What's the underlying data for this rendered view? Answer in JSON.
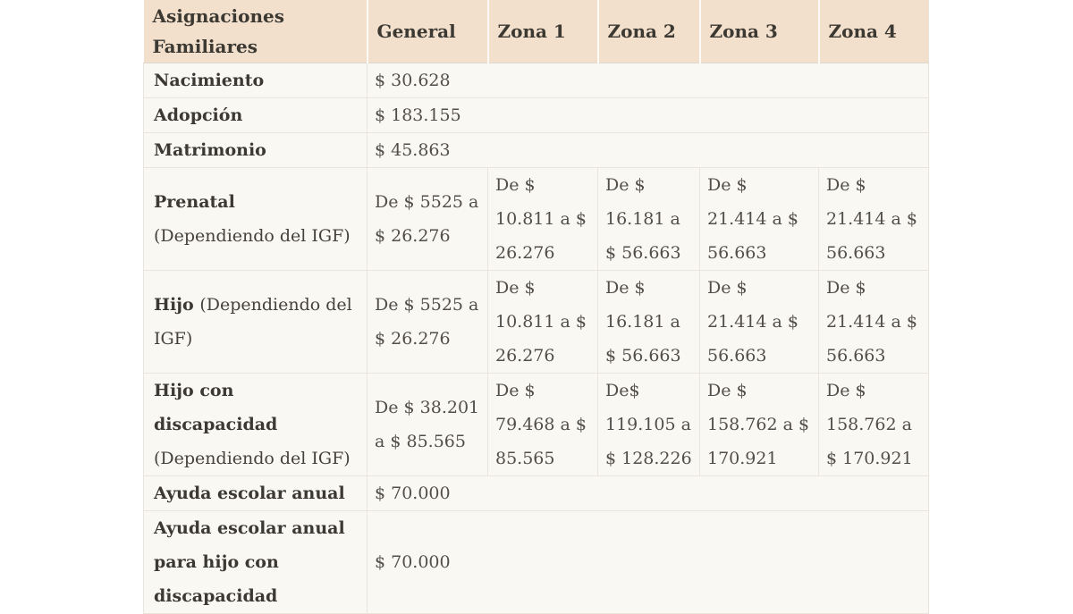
{
  "table": {
    "header": {
      "title": "Asignaciones Familiares",
      "columns": [
        "General",
        "Zona 1",
        "Zona 2",
        "Zona 3",
        "Zona 4"
      ]
    },
    "rows": [
      {
        "label": "Nacimiento",
        "value": "$ 30.628"
      },
      {
        "label": "Adopción",
        "value": "$ 183.155"
      },
      {
        "label": "Matrimonio",
        "value": "$ 45.863"
      },
      {
        "label": "Prenatal",
        "note": "(Dependiendo del IGF)",
        "values": [
          "De $ 5525 a $ 26.276",
          "De $ 10.811 a $ 26.276",
          "De $ 16.181 a $ 56.663",
          "De $ 21.414 a $ 56.663",
          "De $ 21.414 a $ 56.663"
        ]
      },
      {
        "label": "Hijo",
        "note": "(Dependiendo del IGF)",
        "values": [
          "De $ 5525 a $ 26.276",
          "De $ 10.811 a $ 26.276",
          "De $ 16.181 a $ 56.663",
          "De $ 21.414 a $ 56.663",
          "De $ 21.414 a $ 56.663"
        ]
      },
      {
        "label": "Hijo con discapacidad",
        "note": "(Dependiendo del IGF)",
        "values": [
          "De $ 38.201 a $ 85.565",
          "De $ 79.468 a $ 85.565",
          "De$ 119.105 a $ 128.226",
          "De $ 158.762 a $ 170.921",
          "De $ 158.762 a $ 170.921"
        ]
      },
      {
        "label": "Ayuda escolar anual",
        "value": "$ 70.000"
      },
      {
        "label": "Ayuda escolar anual para hijo con discapacidad",
        "value": "$ 70.000"
      }
    ],
    "colors": {
      "header_bg": "#f2e0cd",
      "row_bg": "#faf8f2",
      "border": "#e9e4dc",
      "header_divider": "#fbfaf7",
      "label_text": "#3c3933",
      "value_text": "#524e48"
    }
  }
}
